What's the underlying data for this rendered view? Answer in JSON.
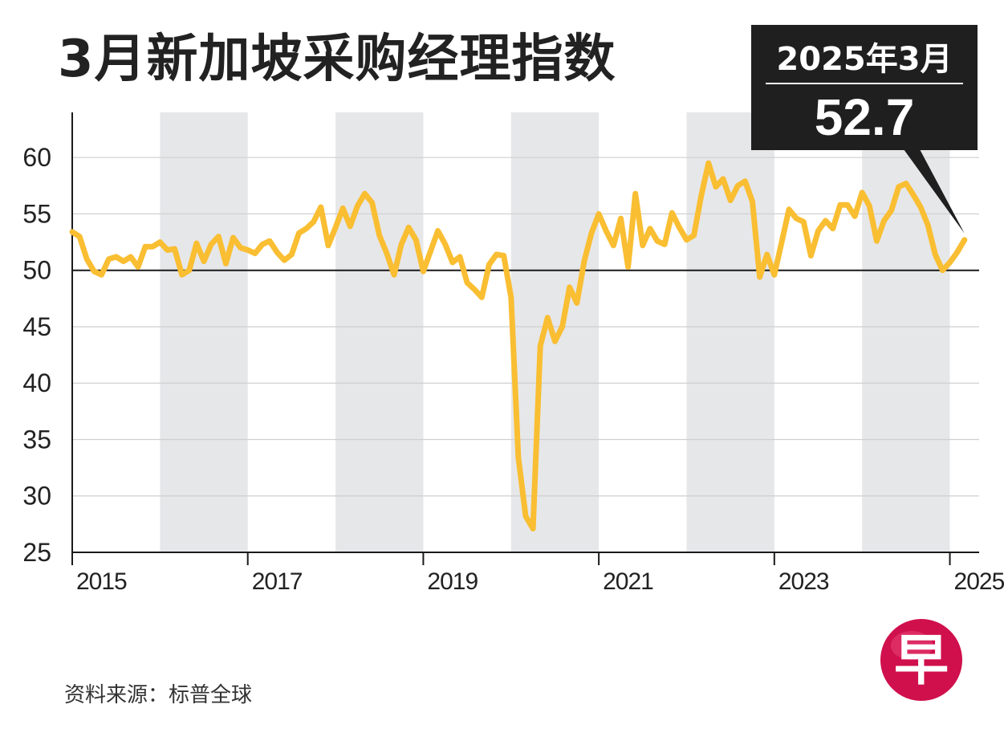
{
  "title": "3月新加坡采购经理指数",
  "callout": {
    "date": "2025年3月",
    "value": "52.7"
  },
  "source": "资料来源：标普全球",
  "logo_text": "早",
  "colors": {
    "line": "#F9BE32",
    "band": "#E6E7E9",
    "grid": "#CFCFCF",
    "callout_bg": "#1F1F1F",
    "logo": "#D0104C"
  },
  "chart_data": {
    "type": "line",
    "title": "3月新加坡采购经理指数",
    "xlabel": "",
    "ylabel": "",
    "ylim": [
      25,
      64
    ],
    "yticks": [
      25,
      30,
      35,
      40,
      45,
      50,
      55,
      60
    ],
    "reference_line": 50,
    "xlim": [
      "2015-01",
      "2025-05"
    ],
    "xticks": [
      {
        "label": "2015",
        "date": "2015-01"
      },
      {
        "label": "2017",
        "date": "2017-01"
      },
      {
        "label": "2019",
        "date": "2019-01"
      },
      {
        "label": "2021",
        "date": "2021-01"
      },
      {
        "label": "2023",
        "date": "2023-01"
      },
      {
        "label": "2025年",
        "date": "2025-01"
      }
    ],
    "shaded_years": [
      2016,
      2018,
      2020,
      2022,
      2024
    ],
    "grid": true,
    "series": [
      {
        "x": [
          "2015-01",
          "2015-02",
          "2015-03",
          "2015-04",
          "2015-05",
          "2015-06",
          "2015-07",
          "2015-08",
          "2015-09",
          "2015-10",
          "2015-11",
          "2015-12",
          "2016-01",
          "2016-02",
          "2016-03",
          "2016-04",
          "2016-05",
          "2016-06",
          "2016-07",
          "2016-08",
          "2016-09",
          "2016-10",
          "2016-11",
          "2016-12",
          "2017-01",
          "2017-02",
          "2017-03",
          "2017-04",
          "2017-05",
          "2017-06",
          "2017-07",
          "2017-08",
          "2017-09",
          "2017-10",
          "2017-11",
          "2017-12",
          "2018-01",
          "2018-02",
          "2018-03",
          "2018-04",
          "2018-05",
          "2018-06",
          "2018-07",
          "2018-08",
          "2018-09",
          "2018-10",
          "2018-11",
          "2018-12",
          "2019-01",
          "2019-02",
          "2019-03",
          "2019-04",
          "2019-05",
          "2019-06",
          "2019-07",
          "2019-08",
          "2019-09",
          "2019-10",
          "2019-11",
          "2019-12",
          "2020-01",
          "2020-02",
          "2020-03",
          "2020-04",
          "2020-05",
          "2020-06",
          "2020-07",
          "2020-08",
          "2020-09",
          "2020-10",
          "2020-11",
          "2020-12",
          "2021-01",
          "2021-02",
          "2021-03",
          "2021-04",
          "2021-05",
          "2021-06",
          "2021-07",
          "2021-08",
          "2021-09",
          "2021-10",
          "2021-11",
          "2021-12",
          "2022-01",
          "2022-02",
          "2022-03",
          "2022-04",
          "2022-05",
          "2022-06",
          "2022-07",
          "2022-08",
          "2022-09",
          "2022-10",
          "2022-11",
          "2022-12",
          "2023-01",
          "2023-02",
          "2023-03",
          "2023-04",
          "2023-05",
          "2023-06",
          "2023-07",
          "2023-08",
          "2023-09",
          "2023-10",
          "2023-11",
          "2023-12",
          "2024-01",
          "2024-02",
          "2024-03",
          "2024-04",
          "2024-05",
          "2024-06",
          "2024-07",
          "2024-08",
          "2024-09",
          "2024-10",
          "2024-11",
          "2024-12",
          "2025-01",
          "2025-02",
          "2025-03"
        ],
        "values": [
          53.4,
          53.0,
          51.0,
          49.9,
          49.6,
          51.0,
          51.2,
          50.8,
          51.2,
          50.3,
          52.1,
          52.1,
          52.5,
          51.8,
          51.9,
          49.6,
          50.0,
          52.4,
          50.8,
          52.3,
          53.0,
          50.6,
          52.9,
          52.0,
          51.8,
          51.5,
          52.3,
          52.6,
          51.6,
          50.9,
          51.4,
          53.3,
          53.7,
          54.3,
          55.6,
          52.2,
          53.8,
          55.5,
          53.9,
          55.7,
          56.8,
          56.0,
          53.1,
          51.5,
          49.6,
          52.3,
          53.8,
          52.7,
          49.9,
          51.7,
          53.5,
          52.3,
          50.7,
          51.2,
          48.9,
          48.3,
          47.6,
          50.5,
          51.4,
          51.3,
          47.6,
          33.4,
          28.2,
          27.1,
          43.3,
          45.8,
          43.7,
          45.0,
          48.5,
          47.1,
          50.8,
          53.3,
          55.0,
          53.5,
          52.2,
          54.6,
          50.3,
          56.8,
          52.2,
          53.7,
          52.6,
          52.3,
          55.1,
          53.8,
          52.7,
          53.1,
          56.6,
          59.5,
          57.4,
          58.1,
          56.2,
          57.5,
          57.9,
          56.1,
          49.4,
          51.4,
          49.6,
          52.5,
          55.4,
          54.6,
          54.3,
          51.3,
          53.5,
          54.4,
          53.7,
          55.8,
          55.8,
          54.8,
          56.9,
          55.7,
          52.6,
          54.4,
          55.3,
          57.4,
          57.7,
          56.7,
          55.6,
          54.0,
          51.4,
          50.0,
          50.7,
          51.6,
          52.7
        ]
      }
    ]
  }
}
